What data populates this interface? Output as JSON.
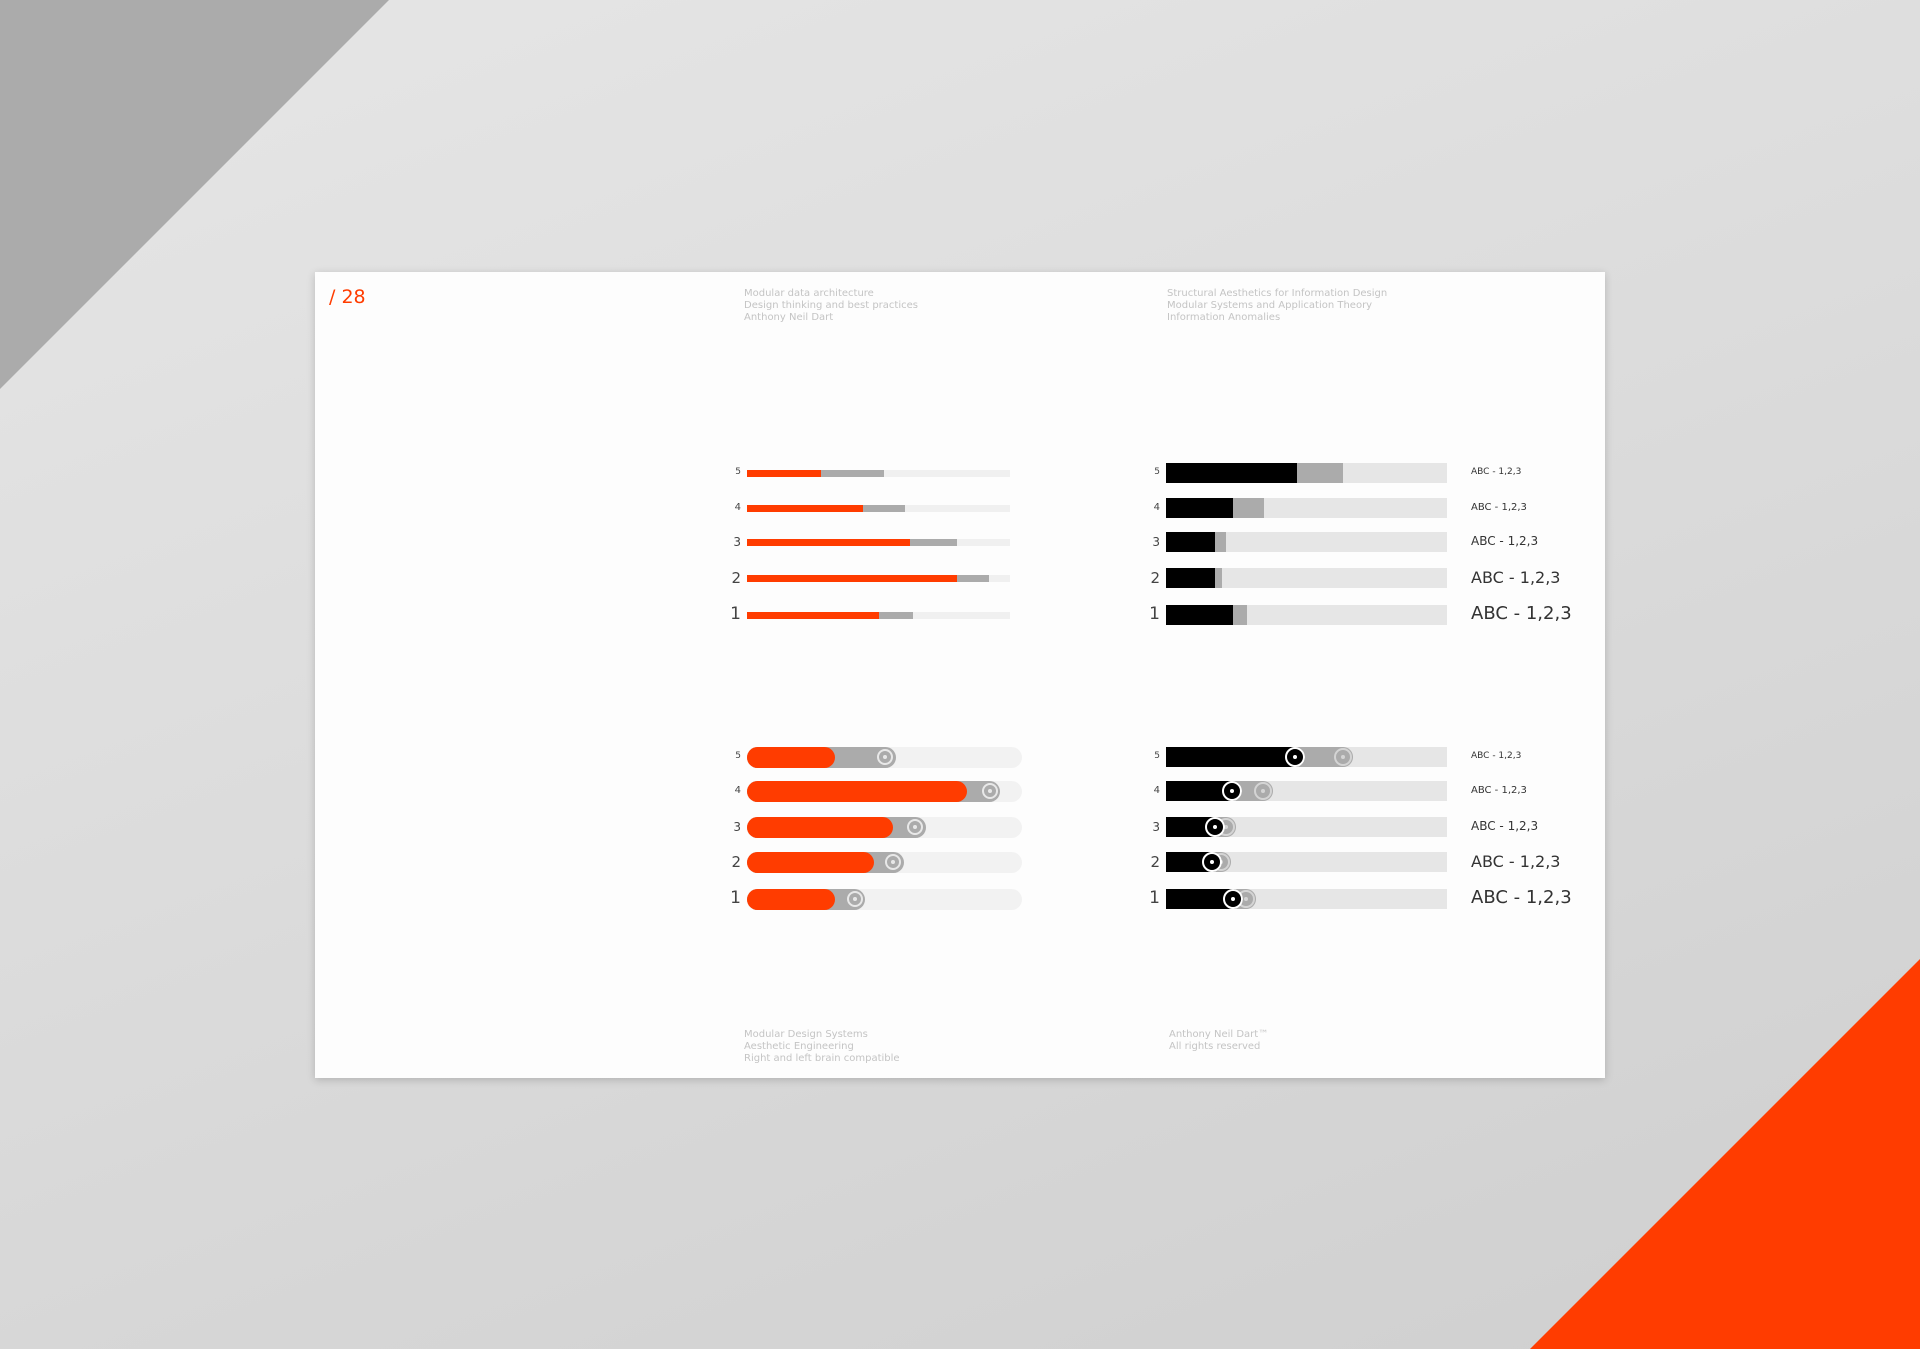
{
  "page_number": "/ 28",
  "header": {
    "left": [
      "Modular data architecture",
      "Design thinking and best practices",
      "Anthony Neil Dart"
    ],
    "right": [
      "Structural Aesthetics for Information Design",
      "Modular Systems and Application Theory",
      "Information Anomalies"
    ]
  },
  "footer": {
    "left": [
      "Modular Design Systems",
      "Aesthetic Engineering",
      "Right and left brain compatible"
    ],
    "right": [
      "Anthony Neil Dart™",
      "All rights reserved"
    ]
  },
  "colors": {
    "accent": "#ff3c00",
    "primary_dark": "#000000",
    "secondary": "#ababab",
    "track": "#e6e6e6",
    "track_light": "#f3f3f3"
  },
  "chart_data": [
    {
      "type": "bar",
      "orientation": "horizontal",
      "style": "thin",
      "color": "#ff3c00",
      "categories": [
        "5",
        "4",
        "3",
        "2",
        "1"
      ],
      "series": [
        {
          "values": [
            28,
            44,
            62,
            80,
            50
          ]
        },
        {
          "values": [
            52,
            60,
            80,
            92,
            63
          ]
        }
      ],
      "xlim": [
        0,
        100
      ]
    },
    {
      "type": "bar",
      "orientation": "horizontal",
      "style": "block",
      "color": "#000000",
      "categories": [
        "5",
        "4",
        "3",
        "2",
        "1"
      ],
      "series": [
        {
          "values": [
            46.5,
            24,
            17.6,
            17.6,
            24
          ]
        },
        {
          "values": [
            63,
            35,
            21.4,
            20,
            29
          ]
        }
      ],
      "labels": [
        "ABC - 1,2,3",
        "ABC - 1,2,3",
        "ABC - 1,2,3",
        "ABC - 1,2,3",
        "ABC - 1,2,3"
      ],
      "xlim": [
        0,
        100
      ]
    },
    {
      "type": "bar",
      "orientation": "horizontal",
      "style": "slider-pill",
      "color": "#ff3c00",
      "categories": [
        "5",
        "4",
        "3",
        "2",
        "1"
      ],
      "series": [
        {
          "values": [
            32,
            80,
            53,
            46,
            32
          ]
        },
        {
          "values": [
            54,
            92,
            65,
            57,
            43
          ]
        }
      ],
      "xlim": [
        0,
        100
      ]
    },
    {
      "type": "bar",
      "orientation": "horizontal",
      "style": "slider-block",
      "color": "#000000",
      "categories": [
        "5",
        "4",
        "3",
        "2",
        "1"
      ],
      "series": [
        {
          "values": [
            49.5,
            27,
            21,
            20,
            27.5
          ]
        },
        {
          "values": [
            66.6,
            38,
            25,
            23,
            32
          ]
        }
      ],
      "labels": [
        "ABC - 1,2,3",
        "ABC - 1,2,3",
        "ABC - 1,2,3",
        "ABC - 1,2,3",
        "ABC - 1,2,3"
      ],
      "xlim": [
        0,
        100
      ]
    }
  ]
}
